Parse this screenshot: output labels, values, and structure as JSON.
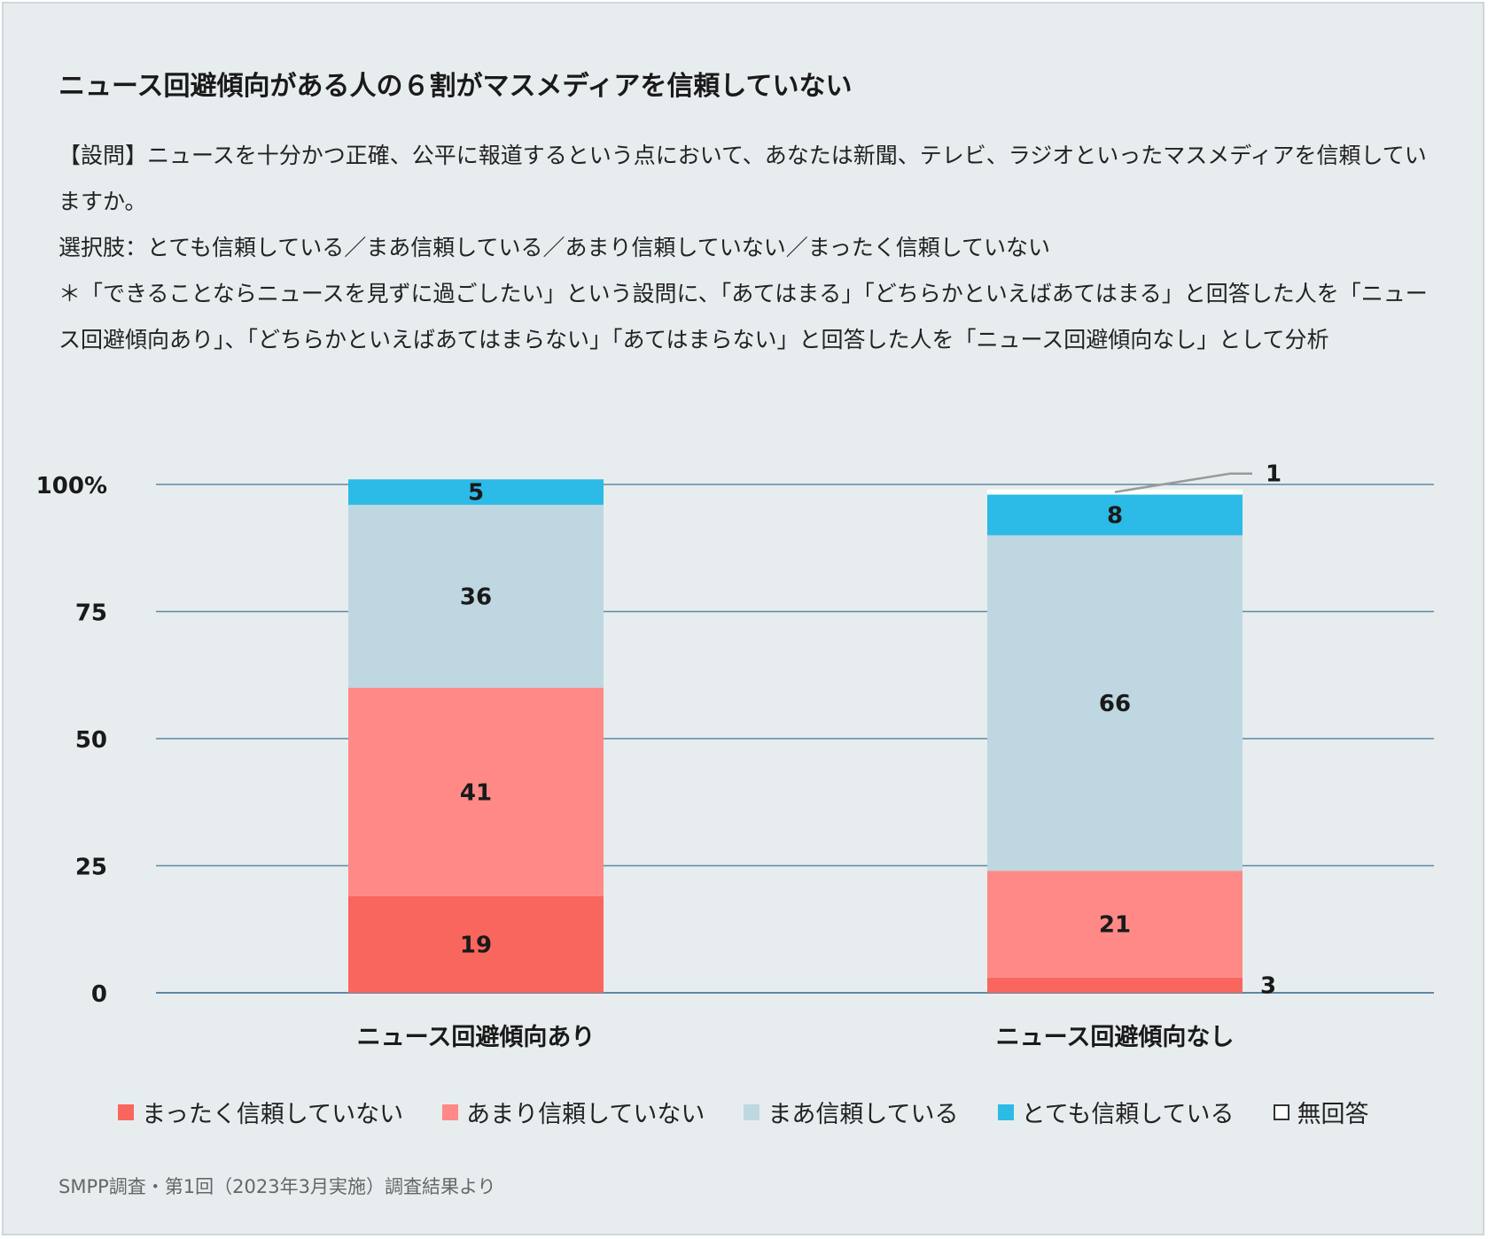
{
  "title": "ニュース回避傾向がある人の６割がマスメディアを信頼していない",
  "description": [
    "【設問】ニュースを十分かつ正確、公平に報道するという点において、あなたは新聞、テレビ、ラジオといったマスメディアを信頼していますか。",
    "選択肢：とても信頼している／まあ信頼している／あまり信頼していない／まったく信頼していない",
    "＊「できることならニュースを見ずに過ごしたい」という設問に、「あてはまる」「どちらかといえばあてはまる」と回答した人を「ニュース回避傾向あり」、「どちらかといえばあてはまらない」「あてはまらない」と回答した人を「ニュース回避傾向なし」として分析"
  ],
  "source": "SMPP調査・第1回（2023年3月実施）調査結果より",
  "chart_data": {
    "type": "bar",
    "stacked": true,
    "categories": [
      "ニュース回避傾向あり",
      "ニュース回避傾向なし"
    ],
    "series": [
      {
        "name": "まったく信頼していない",
        "values": [
          19,
          3
        ],
        "color": "#f9665e"
      },
      {
        "name": "あまり信頼していない",
        "values": [
          41,
          21
        ],
        "color": "#fe8987"
      },
      {
        "name": "まあ信頼している",
        "values": [
          36,
          66
        ],
        "color": "#bed7e0"
      },
      {
        "name": "とても信頼している",
        "values": [
          5,
          8
        ],
        "color": "#2cbae6"
      },
      {
        "name": "無回答",
        "values": [
          0,
          1
        ],
        "color": "#ffffff"
      }
    ],
    "ylim": [
      0,
      100
    ],
    "yticks": [
      0,
      25,
      50,
      75,
      100
    ],
    "ytick_labels": [
      "0",
      "25",
      "50",
      "75",
      "100%"
    ],
    "grid": true,
    "legend_position": "bottom"
  }
}
